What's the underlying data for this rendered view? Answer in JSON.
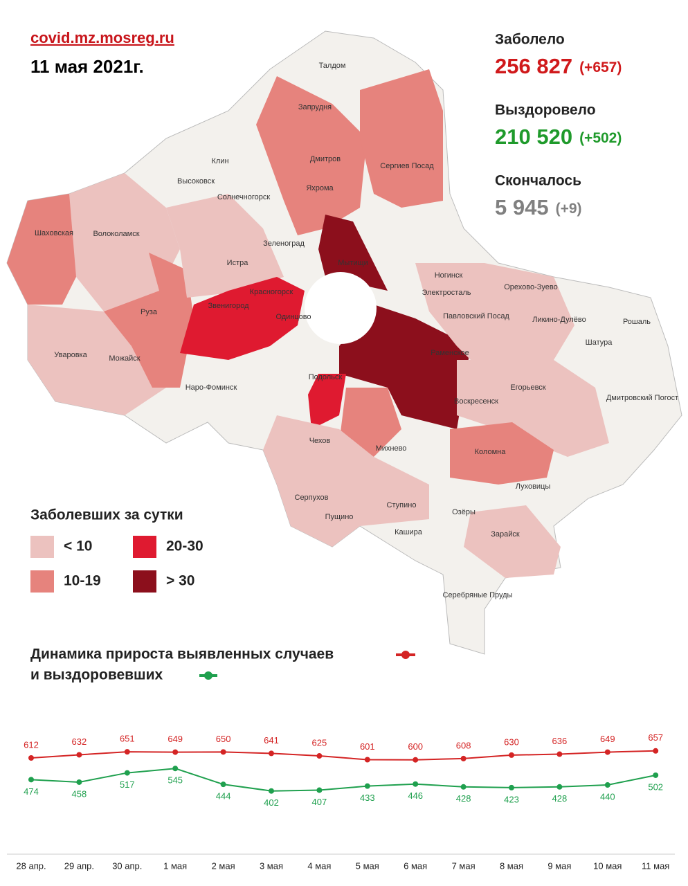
{
  "header": {
    "site": "covid.mz.mosreg.ru",
    "date": "11 мая 2021г."
  },
  "stats": [
    {
      "label": "Заболело",
      "value": "256 827",
      "delta": "(+657)",
      "color": "#d0191b"
    },
    {
      "label": "Выздоровело",
      "value": "210 520",
      "delta": "(+502)",
      "color": "#1f9a2b"
    },
    {
      "label": "Скончалось",
      "value": "5 945",
      "delta": "(+9)",
      "color": "#808080"
    }
  ],
  "legend": {
    "title": "Заболевших за сутки",
    "items": [
      {
        "label": "< 10",
        "color": "#ecc2bf"
      },
      {
        "label": "10-19",
        "color": "#e6837d"
      },
      {
        "label": "20-30",
        "color": "#df1a30"
      },
      {
        "label": "> 30",
        "color": "#8c0f1c"
      }
    ]
  },
  "map": {
    "towns": [
      "Талдом",
      "Запрудня",
      "Клин",
      "Дмитров",
      "Сергиев Посад",
      "Высоковск",
      "Яхрома",
      "Солнечногорск",
      "Шаховская",
      "Волоколамск",
      "Зеленоград",
      "Истра",
      "Мытищи",
      "Ногинск",
      "Орехово-Зуево",
      "Красногорск",
      "Электросталь",
      "Звенигород",
      "Павловский Посад",
      "Одинцово",
      "Ликино-Дулёво",
      "Руза",
      "Рошаль",
      "Шатура",
      "Уваровка",
      "Можайск",
      "Раменское",
      "Наро-Фоминск",
      "Подольск",
      "Егорьевск",
      "Воскресенск",
      "Дмитровский Погост",
      "Чехов",
      "Михнево",
      "Коломна",
      "Луховицы",
      "Серпухов",
      "Ступино",
      "Пущино",
      "Озёры",
      "Кашира",
      "Зарайск",
      "Серебряные Пруды"
    ]
  },
  "chart_data": {
    "type": "line",
    "title": "Динамика прироста выявленных случаев",
    "subtitle": "и выздоровевших",
    "categories": [
      "28 апр.",
      "29 апр.",
      "30 апр.",
      "1 мая",
      "2 мая",
      "3 мая",
      "4 мая",
      "5 мая",
      "6 мая",
      "7 мая",
      "8 мая",
      "9 мая",
      "10 мая",
      "11 мая"
    ],
    "series": [
      {
        "color": "#d42424",
        "values": [
          612,
          632,
          651,
          649,
          650,
          641,
          625,
          601,
          600,
          608,
          630,
          636,
          649,
          657
        ]
      },
      {
        "color": "#1fa04e",
        "values": [
          474,
          458,
          517,
          545,
          444,
          402,
          407,
          433,
          446,
          428,
          423,
          428,
          440,
          502
        ]
      }
    ],
    "ylim": [
      0,
      700
    ]
  }
}
